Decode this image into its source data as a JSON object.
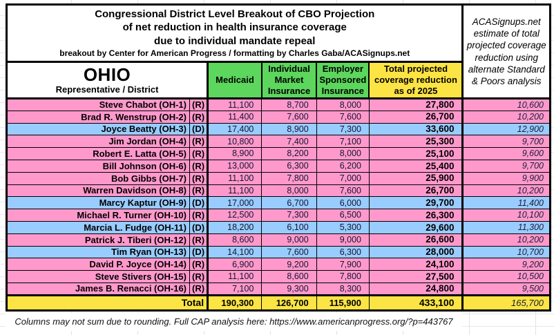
{
  "title": {
    "line1": "Congressional District Level Breakout of CBO Projection",
    "line2": "of net reduction in health insurance coverage",
    "line3": "due to individual mandate repeal",
    "byline": "breakout by Center for American Progress / formatting by Charles Gaba/ACASignups.net"
  },
  "sp_header": "ACASignups.net estimate of total projected coverage reduction using alternate Standard & Poors analysis",
  "header": {
    "state": "OHIO",
    "subtitle": "Representative / District",
    "col_medicaid": "Medicaid",
    "col_individual": "Individual Market Insurance",
    "col_employer": "Employer Sponsored Insurance",
    "col_total": "Total projected coverage reduction as of 2025"
  },
  "rows": [
    {
      "name": "Steve Chabot (OH-1)",
      "party": "R",
      "medicaid": "11,100",
      "individual": "8,700",
      "employer": "8,000",
      "total": "27,800",
      "sp_estimate": "10,600"
    },
    {
      "name": "Brad R. Wenstrup (OH-2)",
      "party": "R",
      "medicaid": "11,400",
      "individual": "7,600",
      "employer": "7,600",
      "total": "26,700",
      "sp_estimate": "10,200"
    },
    {
      "name": "Joyce Beatty (OH-3)",
      "party": "D",
      "medicaid": "17,400",
      "individual": "8,900",
      "employer": "7,300",
      "total": "33,600",
      "sp_estimate": "12,900"
    },
    {
      "name": "Jim Jordan (OH-4)",
      "party": "R",
      "medicaid": "10,800",
      "individual": "7,400",
      "employer": "7,100",
      "total": "25,300",
      "sp_estimate": "9,700"
    },
    {
      "name": "Robert E. Latta (OH-5)",
      "party": "R",
      "medicaid": "8,900",
      "individual": "8,200",
      "employer": "8,000",
      "total": "25,100",
      "sp_estimate": "9,600"
    },
    {
      "name": "Bill Johnson (OH-6)",
      "party": "R",
      "medicaid": "13,000",
      "individual": "6,300",
      "employer": "6,200",
      "total": "25,400",
      "sp_estimate": "9,700"
    },
    {
      "name": "Bob Gibbs (OH-7)",
      "party": "R",
      "medicaid": "11,100",
      "individual": "7,800",
      "employer": "7,000",
      "total": "25,900",
      "sp_estimate": "9,900"
    },
    {
      "name": "Warren Davidson (OH-8)",
      "party": "R",
      "medicaid": "11,100",
      "individual": "8,000",
      "employer": "7,600",
      "total": "26,700",
      "sp_estimate": "10,200"
    },
    {
      "name": "Marcy Kaptur (OH-9)",
      "party": "D",
      "medicaid": "17,000",
      "individual": "6,700",
      "employer": "6,000",
      "total": "29,700",
      "sp_estimate": "11,400"
    },
    {
      "name": "Michael R. Turner (OH-10)",
      "party": "R",
      "medicaid": "12,500",
      "individual": "7,300",
      "employer": "6,500",
      "total": "26,300",
      "sp_estimate": "10,100"
    },
    {
      "name": "Marcia L. Fudge (OH-11)",
      "party": "D",
      "medicaid": "18,200",
      "individual": "6,100",
      "employer": "5,300",
      "total": "29,600",
      "sp_estimate": "11,300"
    },
    {
      "name": "Patrick J. Tiberi (OH-12)",
      "party": "R",
      "medicaid": "8,600",
      "individual": "9,000",
      "employer": "9,000",
      "total": "26,600",
      "sp_estimate": "10,200"
    },
    {
      "name": "Tim Ryan (OH-13)",
      "party": "D",
      "medicaid": "14,100",
      "individual": "7,600",
      "employer": "6,300",
      "total": "28,000",
      "sp_estimate": "10,700"
    },
    {
      "name": "David P. Joyce (OH-14)",
      "party": "R",
      "medicaid": "6,900",
      "individual": "9,200",
      "employer": "7,900",
      "total": "24,100",
      "sp_estimate": "9,200"
    },
    {
      "name": "Steve Stivers (OH-15)",
      "party": "R",
      "medicaid": "11,100",
      "individual": "8,600",
      "employer": "7,800",
      "total": "27,500",
      "sp_estimate": "10,500"
    },
    {
      "name": "James B. Renacci (OH-16)",
      "party": "R",
      "medicaid": "7,100",
      "individual": "9,300",
      "employer": "8,300",
      "total": "24,800",
      "sp_estimate": "9,500"
    }
  ],
  "total": {
    "label": "Total",
    "medicaid": "190,300",
    "individual": "126,700",
    "employer": "115,900",
    "total": "433,100",
    "sp_estimate": "165,700"
  },
  "footer": {
    "note": "Columns may not sum due to rounding. Full CAP analysis here: https://www.americanprogress.org/?p=443767"
  },
  "colors": {
    "republican_row": "#FF99CC",
    "democrat_row": "#99CCFF",
    "header_green": "#5CD65C",
    "header_yellow": "#FBE443",
    "border": "#000000"
  }
}
